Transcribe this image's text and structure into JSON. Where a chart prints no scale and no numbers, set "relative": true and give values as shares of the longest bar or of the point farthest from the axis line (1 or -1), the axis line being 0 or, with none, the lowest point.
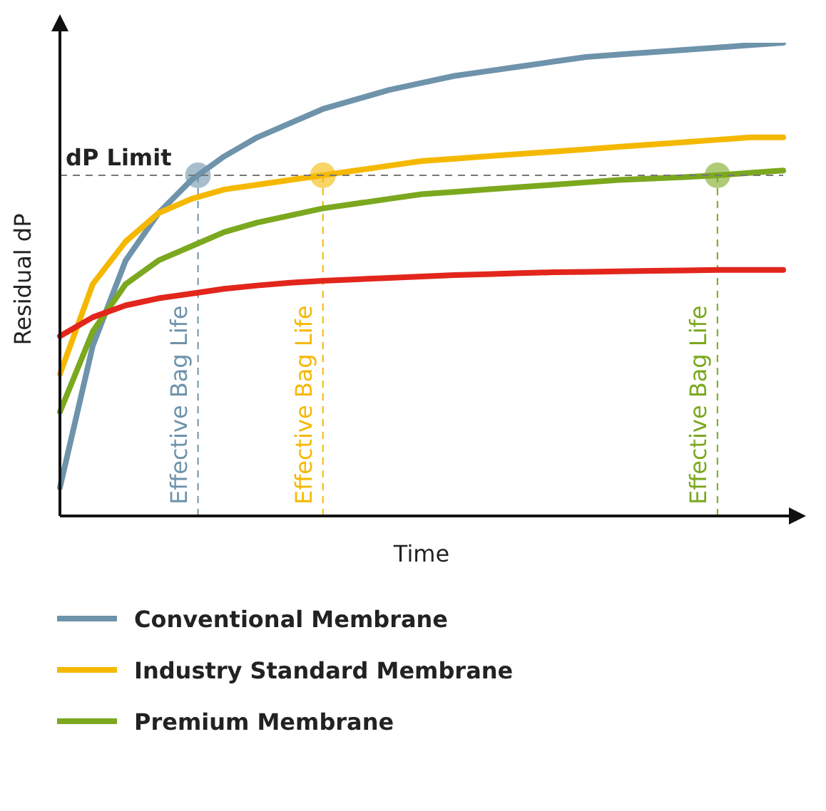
{
  "chart_data": {
    "type": "line",
    "xlabel": "Time",
    "ylabel": "Residual dP",
    "relative": true,
    "legend": "bottom",
    "line_style": "solid",
    "marker": "none",
    "categories": [
      null,
      null,
      null,
      null,
      null,
      null,
      null,
      null,
      null,
      null,
      null,
      null,
      null,
      null,
      null,
      null,
      null,
      null,
      null,
      null,
      null,
      null,
      null
    ],
    "series": [
      {
        "name": "Conventional Membrane",
        "color": "#6e93ab",
        "values": [
          0.06,
          0.36,
          0.54,
          0.64,
          0.71,
          0.76,
          0.8,
          0.83,
          0.86,
          0.88,
          0.9,
          0.915,
          0.93,
          0.94,
          0.95,
          0.96,
          0.97,
          0.975,
          0.98,
          0.985,
          0.99,
          0.995,
          1
        ]
      },
      {
        "name": "Industry Standard Membrane",
        "color": "#f5b800",
        "values": [
          0.3,
          0.49,
          0.58,
          0.64,
          0.67,
          0.69,
          0.7,
          0.71,
          0.72,
          0.73,
          0.74,
          0.75,
          0.755,
          0.76,
          0.765,
          0.77,
          0.775,
          0.78,
          0.785,
          0.79,
          0.795,
          0.8,
          0.8
        ]
      },
      {
        "name": "Premium Membrane",
        "color": "#7ba81e",
        "values": [
          0.22,
          0.39,
          0.49,
          0.54,
          0.57,
          0.6,
          0.62,
          0.635,
          0.65,
          0.66,
          0.67,
          0.68,
          0.685,
          0.69,
          0.695,
          0.7,
          0.705,
          0.71,
          0.713,
          0.716,
          0.72,
          0.725,
          0.73
        ]
      },
      {
        "color": "#e2261c",
        "values": [
          0.38,
          0.42,
          0.445,
          0.46,
          0.47,
          0.48,
          0.487,
          0.493,
          0.497,
          0.5,
          0.503,
          0.506,
          0.509,
          0.511,
          0.513,
          0.515,
          0.516,
          0.517,
          0.518,
          0.519,
          0.52,
          0.52,
          0.52
        ]
      }
    ],
    "ref_lines": [
      {
        "axis": "y",
        "value": 0.72,
        "label": "dP Limit",
        "color": "#777777",
        "line_style": "dashed"
      }
    ],
    "annotations": [
      "Effective Bag Life",
      "Effective Bag Life",
      "Effective Bag Life"
    ]
  }
}
